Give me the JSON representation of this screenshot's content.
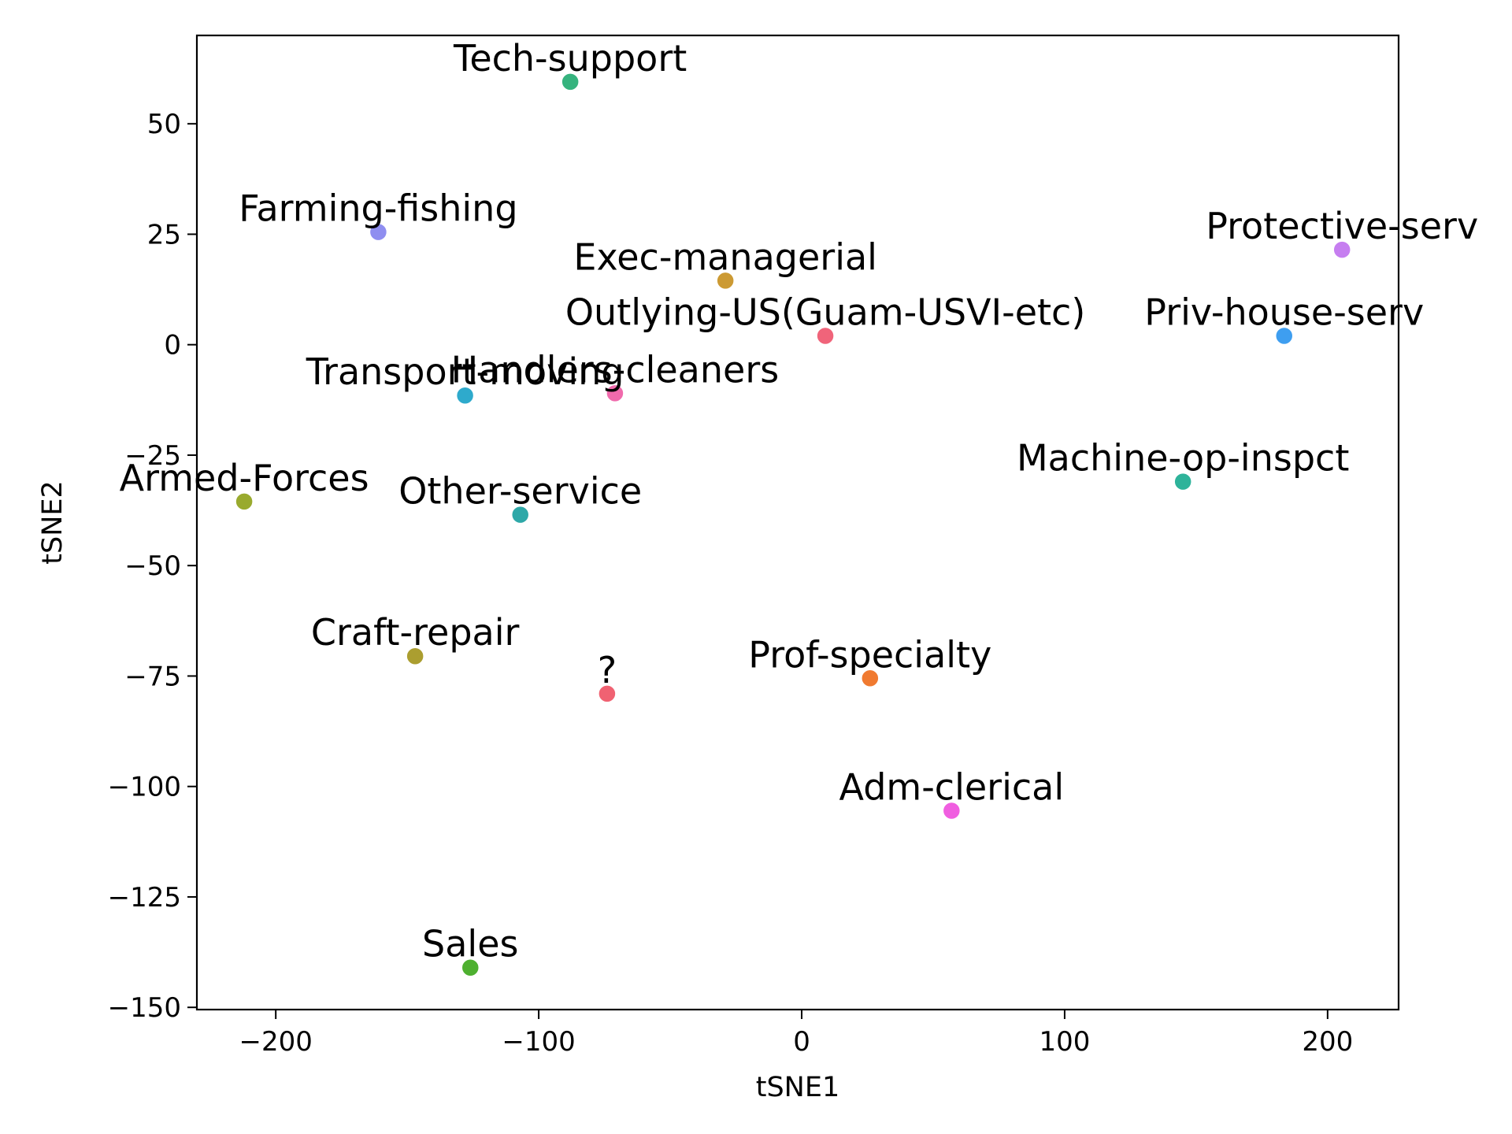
{
  "chart_data": {
    "type": "scatter",
    "title": "",
    "xlabel": "tSNE1",
    "ylabel": "tSNE2",
    "xlim": [
      -230,
      227
    ],
    "ylim": [
      -150.5,
      70
    ],
    "xticks": [
      -200,
      -100,
      0,
      100,
      200
    ],
    "yticks": [
      50,
      25,
      0,
      -25,
      -50,
      -75,
      -100,
      -125,
      -150
    ],
    "xtick_labels": [
      "−200",
      "−100",
      "0",
      "100",
      "200"
    ],
    "ytick_labels": [
      "50",
      "25",
      "0",
      "−25",
      "−50",
      "−75",
      "−100",
      "−125",
      "−150"
    ],
    "grid": false,
    "points": [
      {
        "label": "Tech-support",
        "x": -88,
        "y": 59.5,
        "color": "#36b37e"
      },
      {
        "label": "Farming-fishing",
        "x": -161,
        "y": 25.5,
        "color": "#8f8ef0"
      },
      {
        "label": "Protective-serv",
        "x": 205.5,
        "y": 21.5,
        "color": "#c67ef0"
      },
      {
        "label": "Exec-managerial",
        "x": -29,
        "y": 14.5,
        "color": "#cc9a33"
      },
      {
        "label": "Priv-house-serv",
        "x": 183.5,
        "y": 2,
        "color": "#3e9ef0"
      },
      {
        "label": "Outlying-US(Guam-USVI-etc)",
        "x": 9,
        "y": 2,
        "color": "#f0647a"
      },
      {
        "label": "Transport-moving",
        "x": -128,
        "y": -11.5,
        "color": "#2eaacc"
      },
      {
        "label": "Handlers-cleaners",
        "x": -71,
        "y": -11,
        "color": "#f06aac"
      },
      {
        "label": "Machine-op-inspct",
        "x": 145,
        "y": -31,
        "color": "#2eb39a"
      },
      {
        "label": "Armed-Forces",
        "x": -212,
        "y": -35.5,
        "color": "#99aa2e"
      },
      {
        "label": "Other-service",
        "x": -107,
        "y": -38.5,
        "color": "#2ea8a8"
      },
      {
        "label": "Craft-repair",
        "x": -147,
        "y": -70.5,
        "color": "#ab9e30"
      },
      {
        "label": "?",
        "x": -74,
        "y": -79,
        "color": "#f06272"
      },
      {
        "label": "Prof-specialty",
        "x": 26,
        "y": -75.5,
        "color": "#f07a30"
      },
      {
        "label": "Adm-clerical",
        "x": 57,
        "y": -105.5,
        "color": "#f05ee0"
      },
      {
        "label": "Sales",
        "x": -126,
        "y": -141,
        "color": "#4eb030"
      }
    ]
  }
}
